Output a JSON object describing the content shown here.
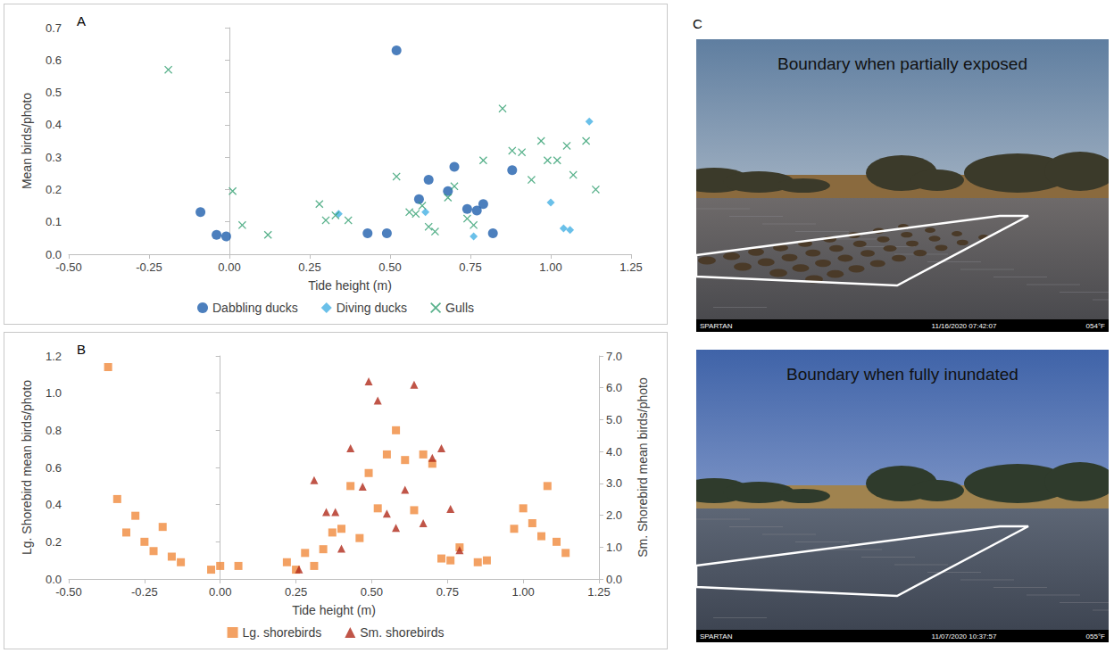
{
  "chart_data": [
    {
      "type": "scatter",
      "title": "A",
      "x_label": "Tide height (m)",
      "y_label": "Mean birds/photo",
      "xlim": [
        -0.5,
        1.25
      ],
      "xticks": [
        {
          "value": -0.5,
          "label": "-0.50"
        },
        {
          "value": -0.25,
          "label": "-0.25"
        },
        {
          "value": 0,
          "label": "0.00"
        },
        {
          "value": 0.25,
          "label": "0.25"
        },
        {
          "value": 0.5,
          "label": "0.50"
        },
        {
          "value": 0.75,
          "label": "0.75"
        },
        {
          "value": 1,
          "label": "1.00"
        },
        {
          "value": 1.25,
          "label": "1.25"
        }
      ],
      "ylim": [
        0,
        0.7
      ],
      "yticks": [
        {
          "value": 0,
          "label": "0.0"
        },
        0.1,
        0.2,
        0.3,
        0.4,
        0.5,
        0.6,
        0.7
      ],
      "grid": false,
      "legend": "bottom",
      "series": [
        {
          "name": "Dabbling ducks",
          "color": "#1f5fad",
          "marker": "circle",
          "x": [
            -0.09,
            -0.04,
            -0.01,
            0.43,
            0.49,
            0.52,
            0.59,
            0.62,
            0.68,
            0.7,
            0.74,
            0.77,
            0.79,
            0.82,
            0.88
          ],
          "values": [
            0.13,
            0.06,
            0.055,
            0.065,
            0.065,
            0.63,
            0.17,
            0.23,
            0.195,
            0.27,
            0.14,
            0.135,
            0.155,
            0.065,
            0.26
          ]
        },
        {
          "name": "Diving ducks",
          "color": "#45b0e3",
          "marker": "diamond",
          "x": [
            0.34,
            0.61,
            0.76,
            1.0,
            1.04,
            1.06,
            1.12
          ],
          "values": [
            0.125,
            0.13,
            0.055,
            0.16,
            0.08,
            0.075,
            0.41
          ]
        },
        {
          "name": "Gulls",
          "color": "#2e9e6e",
          "marker": "x",
          "x": [
            -0.19,
            0.01,
            0.04,
            0.12,
            0.28,
            0.3,
            0.33,
            0.37,
            0.52,
            0.56,
            0.58,
            0.6,
            0.62,
            0.64,
            0.68,
            0.7,
            0.74,
            0.76,
            0.79,
            0.85,
            0.88,
            0.91,
            0.94,
            0.97,
            0.99,
            1.02,
            1.05,
            1.07,
            1.11,
            1.14
          ],
          "values": [
            0.57,
            0.195,
            0.09,
            0.06,
            0.155,
            0.105,
            0.12,
            0.105,
            0.24,
            0.13,
            0.125,
            0.15,
            0.085,
            0.07,
            0.175,
            0.21,
            0.11,
            0.09,
            0.29,
            0.45,
            0.32,
            0.315,
            0.23,
            0.35,
            0.29,
            0.29,
            0.335,
            0.245,
            0.35,
            0.2
          ]
        }
      ]
    },
    {
      "type": "scatter",
      "title": "B",
      "x_label": "Tide height (m)",
      "y_label": "Lg. Shorebird mean birds/photo",
      "y2_label": "Sm. Shorebird mean birds/photo",
      "xlim": [
        -0.5,
        1.25
      ],
      "xticks": [
        {
          "value": -0.5,
          "label": "-0.50"
        },
        {
          "value": -0.25,
          "label": "-0.25"
        },
        {
          "value": 0,
          "label": "0.00"
        },
        {
          "value": 0.25,
          "label": "0.25"
        },
        {
          "value": 0.5,
          "label": "0.50"
        },
        {
          "value": 0.75,
          "label": "0.75"
        },
        {
          "value": 1,
          "label": "1.00"
        },
        {
          "value": 1.25,
          "label": "1.25"
        }
      ],
      "ylim": [
        0,
        1.2
      ],
      "yticks": [
        {
          "value": 0,
          "label": "0.0"
        },
        0.2,
        0.4,
        0.6,
        0.8,
        {
          "value": 1,
          "label": "1.0"
        },
        1.2
      ],
      "y2lim": [
        0,
        7
      ],
      "y2ticks": [
        {
          "value": 0,
          "label": "0.0"
        },
        {
          "value": 1,
          "label": "1.0"
        },
        {
          "value": 2,
          "label": "2.0"
        },
        {
          "value": 3,
          "label": "3.0"
        },
        {
          "value": 4,
          "label": "4.0"
        },
        {
          "value": 5,
          "label": "5.0"
        },
        {
          "value": 6,
          "label": "6.0"
        },
        {
          "value": 7,
          "label": "7.0"
        }
      ],
      "grid": false,
      "legend": "bottom",
      "series": [
        {
          "name": "Lg. shorebirds",
          "color": "#f08a3c",
          "marker": "square",
          "x": [
            -0.37,
            -0.34,
            -0.31,
            -0.28,
            -0.25,
            -0.22,
            -0.19,
            -0.16,
            -0.13,
            -0.03,
            0.0,
            0.06,
            0.22,
            0.25,
            0.28,
            0.31,
            0.34,
            0.37,
            0.4,
            0.43,
            0.46,
            0.49,
            0.52,
            0.55,
            0.58,
            0.61,
            0.64,
            0.67,
            0.7,
            0.73,
            0.76,
            0.79,
            0.85,
            0.88,
            0.97,
            1.0,
            1.03,
            1.06,
            1.08,
            1.11,
            1.14
          ],
          "values": [
            1.14,
            0.43,
            0.25,
            0.34,
            0.2,
            0.15,
            0.28,
            0.12,
            0.09,
            0.05,
            0.07,
            0.07,
            0.09,
            0.05,
            0.14,
            0.07,
            0.16,
            0.25,
            0.27,
            0.5,
            0.22,
            0.57,
            0.38,
            0.67,
            0.8,
            0.64,
            0.37,
            0.67,
            0.62,
            0.11,
            0.1,
            0.17,
            0.09,
            0.1,
            0.27,
            0.38,
            0.3,
            0.23,
            0.5,
            0.2,
            0.14
          ]
        },
        {
          "name": "Sm. shorebirds",
          "color": "#b02a1a",
          "marker": "triangle",
          "axis": "y2",
          "x": [
            0.26,
            0.31,
            0.35,
            0.38,
            0.4,
            0.43,
            0.47,
            0.49,
            0.52,
            0.55,
            0.58,
            0.61,
            0.64,
            0.67,
            0.7,
            0.73,
            0.76,
            0.79
          ],
          "values": [
            0.3,
            3.1,
            2.1,
            2.1,
            0.95,
            4.1,
            2.9,
            6.2,
            5.6,
            2.05,
            1.6,
            2.8,
            6.1,
            1.75,
            3.8,
            4.1,
            2.2,
            0.9
          ]
        }
      ]
    }
  ],
  "panel_c": {
    "label": "C",
    "photos": [
      {
        "caption": "Boundary when partially exposed",
        "camera": "SPARTAN",
        "timestamp": "11/16/2020 07:42:07",
        "temperature": "054°F"
      },
      {
        "caption": "Boundary when fully inundated",
        "camera": "SPARTAN",
        "timestamp": "11/07/2020 10:37:57",
        "temperature": "055°F"
      }
    ]
  }
}
